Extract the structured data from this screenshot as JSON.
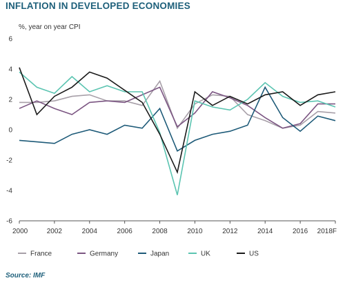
{
  "chart_data": {
    "type": "line",
    "title": "INFLATION IN DEVELOPED ECONOMIES",
    "ylabel": "%, year on year CPI",
    "source": "Source: IMF",
    "x": [
      "2000",
      "2001",
      "2002",
      "2003",
      "2004",
      "2005",
      "2006",
      "2007",
      "2008",
      "2009",
      "2010",
      "2011",
      "2012",
      "2013",
      "2014",
      "2015",
      "2016",
      "2017",
      "2018F"
    ],
    "x_tick_labels": [
      "2000",
      "2002",
      "2004",
      "2006",
      "2008",
      "2010",
      "2012",
      "2014",
      "2016",
      "2018F"
    ],
    "ylim": [
      -6,
      6
    ],
    "y_ticks": [
      -6,
      -4,
      -2,
      0,
      2,
      4,
      6
    ],
    "legend_position": "bottom",
    "grid": false,
    "series": [
      {
        "name": "France",
        "color": "#a79fa8",
        "values": [
          1.8,
          1.8,
          1.9,
          2.2,
          2.3,
          1.9,
          1.9,
          1.6,
          3.2,
          0.1,
          1.7,
          2.3,
          2.2,
          1.0,
          0.6,
          0.1,
          0.3,
          1.2,
          1.1
        ]
      },
      {
        "name": "Germany",
        "color": "#7b5582",
        "values": [
          1.4,
          1.9,
          1.4,
          1.0,
          1.8,
          1.9,
          1.8,
          2.3,
          2.8,
          0.2,
          1.1,
          2.5,
          2.1,
          1.6,
          0.8,
          0.1,
          0.4,
          1.7,
          1.7
        ]
      },
      {
        "name": "Japan",
        "color": "#1d5a78",
        "values": [
          -0.7,
          -0.8,
          -0.9,
          -0.3,
          0.0,
          -0.3,
          0.3,
          0.1,
          1.4,
          -1.4,
          -0.7,
          -0.3,
          -0.1,
          0.3,
          2.8,
          0.8,
          -0.1,
          0.9,
          0.6
        ]
      },
      {
        "name": "UK",
        "color": "#5bc4b1",
        "values": [
          3.8,
          2.8,
          2.4,
          3.5,
          2.5,
          2.9,
          2.5,
          2.5,
          -0.2,
          -4.3,
          1.9,
          1.5,
          1.3,
          2.0,
          3.1,
          2.2,
          1.8,
          1.9,
          1.5
        ]
      },
      {
        "name": "US",
        "color": "#1a1a1a",
        "values": [
          4.1,
          1.0,
          2.2,
          2.8,
          3.8,
          3.4,
          2.6,
          1.8,
          -0.3,
          -2.8,
          2.5,
          1.6,
          2.2,
          1.7,
          2.3,
          2.5,
          1.6,
          2.3,
          2.5
        ]
      }
    ]
  }
}
